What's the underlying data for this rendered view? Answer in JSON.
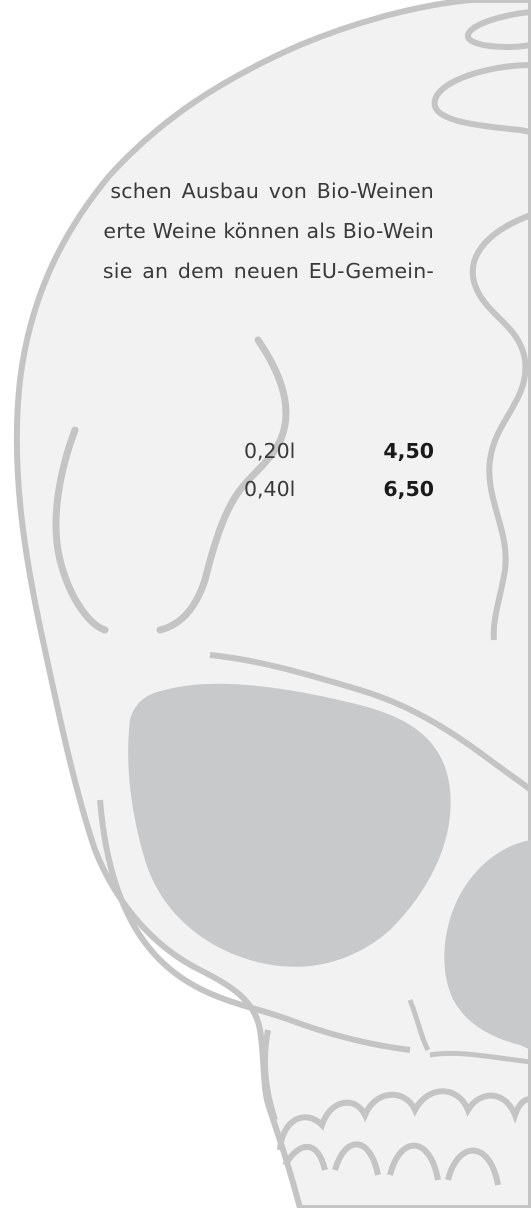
{
  "description": {
    "lines": [
      "schen Ausbau von Bio-Weinen",
      "erte Weine können als Bio-Wein",
      "sie an dem neuen EU-Gemein-"
    ]
  },
  "prices": [
    {
      "size": "0,20l",
      "price": "4,50"
    },
    {
      "size": "0,40l",
      "price": "6,50"
    }
  ],
  "colors": {
    "skull_outline": "#c4c4c4",
    "skull_fill": "#f2f2f2",
    "skull_shadow": "#c8c9cb",
    "text": "#3a3a3a",
    "price_bold": "#1a1a1a"
  },
  "decoration": {
    "icon": "skull-watermark-icon"
  }
}
